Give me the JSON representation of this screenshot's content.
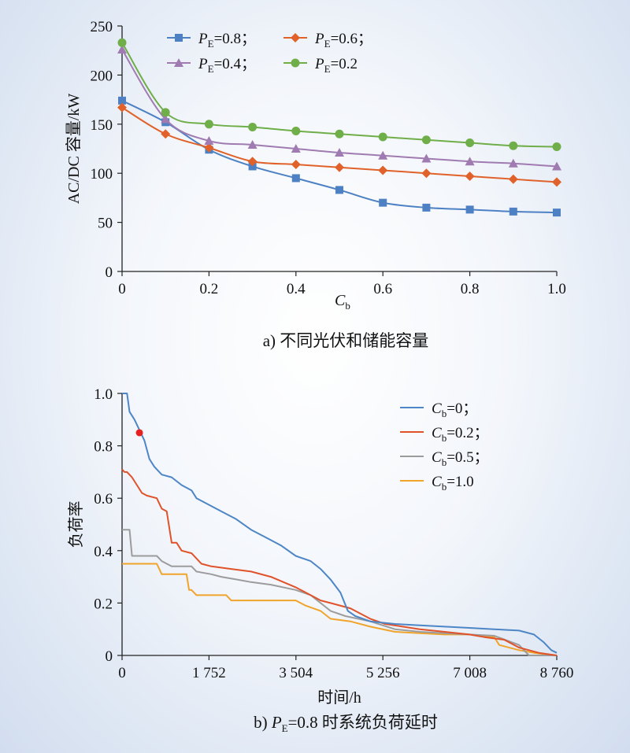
{
  "chart_data": [
    {
      "type": "line",
      "caption": "a) 不同光伏和储能容量",
      "xlabel": "C",
      "xlabel_sub": "b",
      "ylabel": "AC/DC 容量/kW",
      "xlim": [
        0,
        1.0
      ],
      "ylim": [
        0,
        250
      ],
      "xticks": [
        "0",
        "0.2",
        "0.4",
        "0.6",
        "0.8",
        "1.0"
      ],
      "yticks": [
        "0",
        "50",
        "100",
        "150",
        "200",
        "250"
      ],
      "grid": false,
      "legend_position": "top",
      "x": [
        0,
        0.1,
        0.2,
        0.3,
        0.4,
        0.5,
        0.6,
        0.7,
        0.8,
        0.9,
        1.0
      ],
      "series": [
        {
          "name": "P",
          "name_sub": "E",
          "name_rest": "=0.8；",
          "color": "#4d81c4",
          "marker": "square",
          "values": [
            174,
            152,
            124,
            107,
            95,
            83,
            70,
            65,
            63,
            61,
            60
          ]
        },
        {
          "name": "P",
          "name_sub": "E",
          "name_rest": "=0.6；",
          "color": "#e0622a",
          "marker": "diamond",
          "values": [
            167,
            140,
            126,
            112,
            109,
            106,
            103,
            100,
            97,
            94,
            91
          ]
        },
        {
          "name": "P",
          "name_sub": "E",
          "name_rest": "=0.4；",
          "color": "#a07bb1",
          "marker": "triangle",
          "values": [
            226,
            155,
            133,
            129,
            125,
            121,
            118,
            115,
            112,
            110,
            107
          ]
        },
        {
          "name": "P",
          "name_sub": "E",
          "name_rest": "=0.2",
          "color": "#6fae49",
          "marker": "circle",
          "values": [
            233,
            162,
            150,
            147,
            143,
            140,
            137,
            134,
            131,
            128,
            127
          ]
        }
      ]
    },
    {
      "type": "line",
      "caption_prefix": "b) ",
      "caption_var": "P",
      "caption_sub": "E",
      "caption_rest": "=0.8 时系统负荷延时",
      "xlabel": "时间/h",
      "ylabel": "负荷率",
      "xlim": [
        0,
        8760
      ],
      "ylim": [
        0,
        1.0
      ],
      "xticks": [
        "0",
        "1 752",
        "3 504",
        "5 256",
        "7 008",
        "8 760"
      ],
      "yticks": [
        "0",
        "0.2",
        "0.4",
        "0.6",
        "0.8",
        "1.0"
      ],
      "grid": false,
      "legend_position": "top-right",
      "highlight_point": {
        "x": 350,
        "y": 0.85,
        "color": "#e82020"
      },
      "series": [
        {
          "name": "C",
          "name_sub": "b",
          "name_rest": "=0；",
          "color": "#4d86c6",
          "points": [
            [
              0,
              1.0
            ],
            [
              100,
              1.0
            ],
            [
              150,
              0.93
            ],
            [
              250,
              0.9
            ],
            [
              350,
              0.86
            ],
            [
              450,
              0.82
            ],
            [
              550,
              0.75
            ],
            [
              650,
              0.72
            ],
            [
              800,
              0.69
            ],
            [
              1000,
              0.68
            ],
            [
              1200,
              0.65
            ],
            [
              1400,
              0.63
            ],
            [
              1500,
              0.6
            ],
            [
              1700,
              0.58
            ],
            [
              2000,
              0.55
            ],
            [
              2300,
              0.52
            ],
            [
              2600,
              0.48
            ],
            [
              2900,
              0.45
            ],
            [
              3200,
              0.42
            ],
            [
              3500,
              0.38
            ],
            [
              3800,
              0.36
            ],
            [
              4000,
              0.33
            ],
            [
              4200,
              0.29
            ],
            [
              4400,
              0.24
            ],
            [
              4550,
              0.17
            ],
            [
              4700,
              0.15
            ],
            [
              5000,
              0.13
            ],
            [
              5500,
              0.12
            ],
            [
              6000,
              0.115
            ],
            [
              6500,
              0.11
            ],
            [
              7000,
              0.105
            ],
            [
              7500,
              0.1
            ],
            [
              8000,
              0.095
            ],
            [
              8300,
              0.08
            ],
            [
              8500,
              0.05
            ],
            [
              8650,
              0.02
            ],
            [
              8760,
              0.01
            ]
          ]
        },
        {
          "name": "C",
          "name_sub": "b",
          "name_rest": "=0.2；",
          "color": "#e0522a",
          "points": [
            [
              0,
              0.71
            ],
            [
              50,
              0.7
            ],
            [
              100,
              0.7
            ],
            [
              200,
              0.68
            ],
            [
              300,
              0.65
            ],
            [
              400,
              0.62
            ],
            [
              500,
              0.61
            ],
            [
              700,
              0.6
            ],
            [
              800,
              0.56
            ],
            [
              900,
              0.55
            ],
            [
              1000,
              0.43
            ],
            [
              1100,
              0.43
            ],
            [
              1200,
              0.4
            ],
            [
              1400,
              0.39
            ],
            [
              1600,
              0.35
            ],
            [
              1800,
              0.34
            ],
            [
              2200,
              0.33
            ],
            [
              2600,
              0.32
            ],
            [
              3000,
              0.3
            ],
            [
              3500,
              0.26
            ],
            [
              3800,
              0.23
            ],
            [
              4000,
              0.21
            ],
            [
              4200,
              0.2
            ],
            [
              4600,
              0.18
            ],
            [
              5000,
              0.14
            ],
            [
              5300,
              0.12
            ],
            [
              6000,
              0.1
            ],
            [
              6500,
              0.09
            ],
            [
              7000,
              0.08
            ],
            [
              7300,
              0.07
            ],
            [
              7700,
              0.06
            ],
            [
              8000,
              0.03
            ],
            [
              8400,
              0.01
            ],
            [
              8760,
              0.0
            ]
          ]
        },
        {
          "name": "C",
          "name_sub": "b",
          "name_rest": "=0.5；",
          "color": "#9c9c9c",
          "points": [
            [
              0,
              0.48
            ],
            [
              150,
              0.48
            ],
            [
              200,
              0.38
            ],
            [
              500,
              0.38
            ],
            [
              700,
              0.38
            ],
            [
              800,
              0.36
            ],
            [
              1000,
              0.34
            ],
            [
              1400,
              0.34
            ],
            [
              1500,
              0.32
            ],
            [
              1800,
              0.31
            ],
            [
              2000,
              0.3
            ],
            [
              2300,
              0.29
            ],
            [
              2600,
              0.28
            ],
            [
              3000,
              0.27
            ],
            [
              3500,
              0.25
            ],
            [
              3800,
              0.23
            ],
            [
              4000,
              0.2
            ],
            [
              4200,
              0.17
            ],
            [
              4500,
              0.15
            ],
            [
              5000,
              0.13
            ],
            [
              5500,
              0.1
            ],
            [
              6000,
              0.09
            ],
            [
              6500,
              0.085
            ],
            [
              7000,
              0.08
            ],
            [
              7500,
              0.075
            ],
            [
              8000,
              0.04
            ],
            [
              8200,
              0.0
            ],
            [
              8760,
              0.0
            ]
          ]
        },
        {
          "name": "C",
          "name_sub": "b",
          "name_rest": "=1.0",
          "color": "#f0a42a",
          "points": [
            [
              0,
              0.35
            ],
            [
              300,
              0.35
            ],
            [
              700,
              0.35
            ],
            [
              800,
              0.31
            ],
            [
              1300,
              0.31
            ],
            [
              1350,
              0.25
            ],
            [
              1400,
              0.25
            ],
            [
              1500,
              0.23
            ],
            [
              2100,
              0.23
            ],
            [
              2200,
              0.21
            ],
            [
              3500,
              0.21
            ],
            [
              3700,
              0.19
            ],
            [
              4000,
              0.17
            ],
            [
              4200,
              0.14
            ],
            [
              4600,
              0.13
            ],
            [
              5000,
              0.11
            ],
            [
              5500,
              0.09
            ],
            [
              6000,
              0.085
            ],
            [
              6500,
              0.08
            ],
            [
              7000,
              0.08
            ],
            [
              7500,
              0.07
            ],
            [
              7600,
              0.04
            ],
            [
              8000,
              0.02
            ],
            [
              8300,
              0.01
            ],
            [
              8760,
              0.0
            ]
          ]
        }
      ]
    }
  ]
}
